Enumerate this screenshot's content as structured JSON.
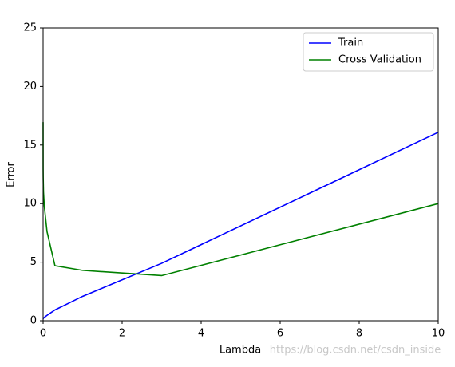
{
  "chart_data": {
    "type": "line",
    "x_label": "Lambda",
    "y_label": "Error",
    "x": [
      0,
      0.001,
      0.003,
      0.01,
      0.03,
      0.1,
      0.3,
      1,
      3,
      10
    ],
    "series": [
      {
        "name": "Train",
        "color": "#0000ff",
        "values": [
          0.17,
          0.17,
          0.19,
          0.22,
          0.28,
          0.46,
          0.92,
          2.08,
          4.9,
          16.09
        ]
      },
      {
        "name": "Cross Validation",
        "color": "#008000",
        "values": [
          16.95,
          13.0,
          12.2,
          11.0,
          9.8,
          7.6,
          4.7,
          4.3,
          3.85,
          10.0
        ]
      }
    ],
    "xlim": [
      0,
      10
    ],
    "xticks": [
      0,
      2,
      4,
      6,
      8,
      10
    ],
    "ylim": [
      0,
      25
    ],
    "yticks": [
      0,
      5,
      10,
      15,
      20,
      25
    ],
    "legend": "upper right",
    "watermark": "https://blog.csdn.net/csdn_inside"
  }
}
